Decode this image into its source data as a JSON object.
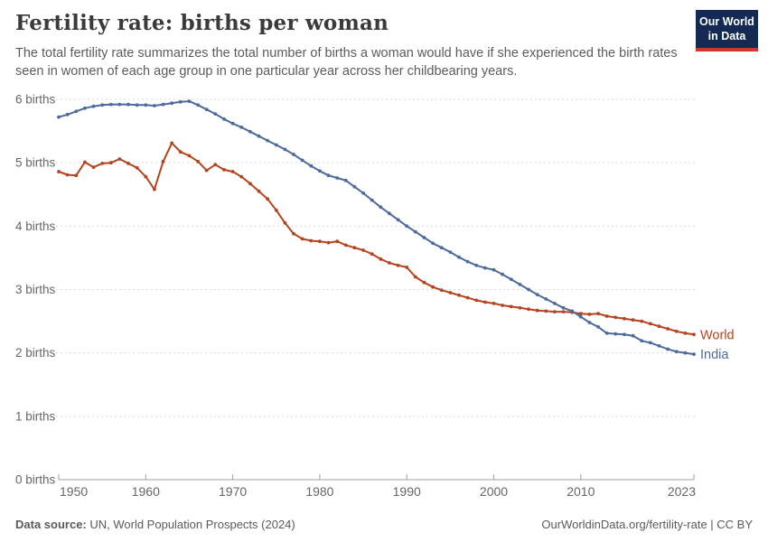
{
  "header": {
    "title": "Fertility rate: births per woman",
    "subtitle": "The total fertility rate summarizes the total number of births a woman would have if she experienced the birth rates seen in women of each age group in one particular year across her childbearing years."
  },
  "logo": {
    "line1": "Our World",
    "line2": "in Data",
    "bg_color": "#142a54",
    "bar_color": "#cd372d"
  },
  "footer": {
    "source_label": "Data source:",
    "source_value": " UN, World Population Prospects (2024)",
    "license": "OurWorldinData.org/fertility-rate | CC BY"
  },
  "chart_data": {
    "type": "line",
    "title": "Fertility rate: births per woman",
    "xlabel": "",
    "ylabel": "births",
    "xlim": [
      1950,
      2023
    ],
    "ylim": [
      0,
      6
    ],
    "grid": "horizontal-dashed",
    "legend_position": "end-of-line-labels",
    "xticks": [
      1950,
      1960,
      1970,
      1980,
      1990,
      2000,
      2010,
      2023
    ],
    "yticks": [
      0,
      1,
      2,
      3,
      4,
      5,
      6
    ],
    "ytick_labels": [
      "0 births",
      "1 births",
      "2 births",
      "3 births",
      "4 births",
      "5 births",
      "6 births"
    ],
    "x": [
      1950,
      1951,
      1952,
      1953,
      1954,
      1955,
      1956,
      1957,
      1958,
      1959,
      1960,
      1961,
      1962,
      1963,
      1964,
      1965,
      1966,
      1967,
      1968,
      1969,
      1970,
      1971,
      1972,
      1973,
      1974,
      1975,
      1976,
      1977,
      1978,
      1979,
      1980,
      1981,
      1982,
      1983,
      1984,
      1985,
      1986,
      1987,
      1988,
      1989,
      1990,
      1991,
      1992,
      1993,
      1994,
      1995,
      1996,
      1997,
      1998,
      1999,
      2000,
      2001,
      2002,
      2003,
      2004,
      2005,
      2006,
      2007,
      2008,
      2009,
      2010,
      2011,
      2012,
      2013,
      2014,
      2015,
      2016,
      2017,
      2018,
      2019,
      2020,
      2021,
      2022,
      2023
    ],
    "series": [
      {
        "name": "World",
        "color": "#b5431f",
        "values": [
          4.86,
          4.81,
          4.8,
          5.01,
          4.93,
          4.99,
          5.0,
          5.06,
          4.99,
          4.92,
          4.78,
          4.58,
          5.02,
          5.31,
          5.17,
          5.11,
          5.02,
          4.88,
          4.97,
          4.89,
          4.86,
          4.78,
          4.67,
          4.55,
          4.43,
          4.25,
          4.05,
          3.88,
          3.8,
          3.77,
          3.76,
          3.74,
          3.76,
          3.7,
          3.66,
          3.62,
          3.56,
          3.48,
          3.42,
          3.38,
          3.35,
          3.2,
          3.11,
          3.04,
          2.99,
          2.95,
          2.91,
          2.87,
          2.83,
          2.8,
          2.78,
          2.75,
          2.73,
          2.71,
          2.69,
          2.67,
          2.66,
          2.65,
          2.65,
          2.64,
          2.62,
          2.61,
          2.62,
          2.58,
          2.56,
          2.54,
          2.52,
          2.5,
          2.46,
          2.42,
          2.38,
          2.34,
          2.31,
          2.29
        ]
      },
      {
        "name": "India",
        "color": "#4c6a9c",
        "values": [
          5.72,
          5.76,
          5.81,
          5.86,
          5.89,
          5.91,
          5.92,
          5.92,
          5.92,
          5.91,
          5.91,
          5.9,
          5.92,
          5.94,
          5.96,
          5.97,
          5.91,
          5.84,
          5.77,
          5.69,
          5.62,
          5.56,
          5.49,
          5.42,
          5.35,
          5.28,
          5.21,
          5.13,
          5.04,
          4.95,
          4.87,
          4.8,
          4.76,
          4.72,
          4.62,
          4.52,
          4.41,
          4.3,
          4.2,
          4.1,
          4.0,
          3.91,
          3.82,
          3.73,
          3.66,
          3.59,
          3.51,
          3.44,
          3.38,
          3.34,
          3.31,
          3.24,
          3.16,
          3.08,
          3.0,
          2.92,
          2.85,
          2.78,
          2.71,
          2.66,
          2.57,
          2.48,
          2.41,
          2.31,
          2.3,
          2.29,
          2.27,
          2.19,
          2.16,
          2.11,
          2.06,
          2.02,
          2.0,
          1.98
        ]
      }
    ],
    "colors": {
      "grid": "#d9d9d9",
      "axis": "#a0a0a0",
      "tick_text": "#666666"
    }
  }
}
